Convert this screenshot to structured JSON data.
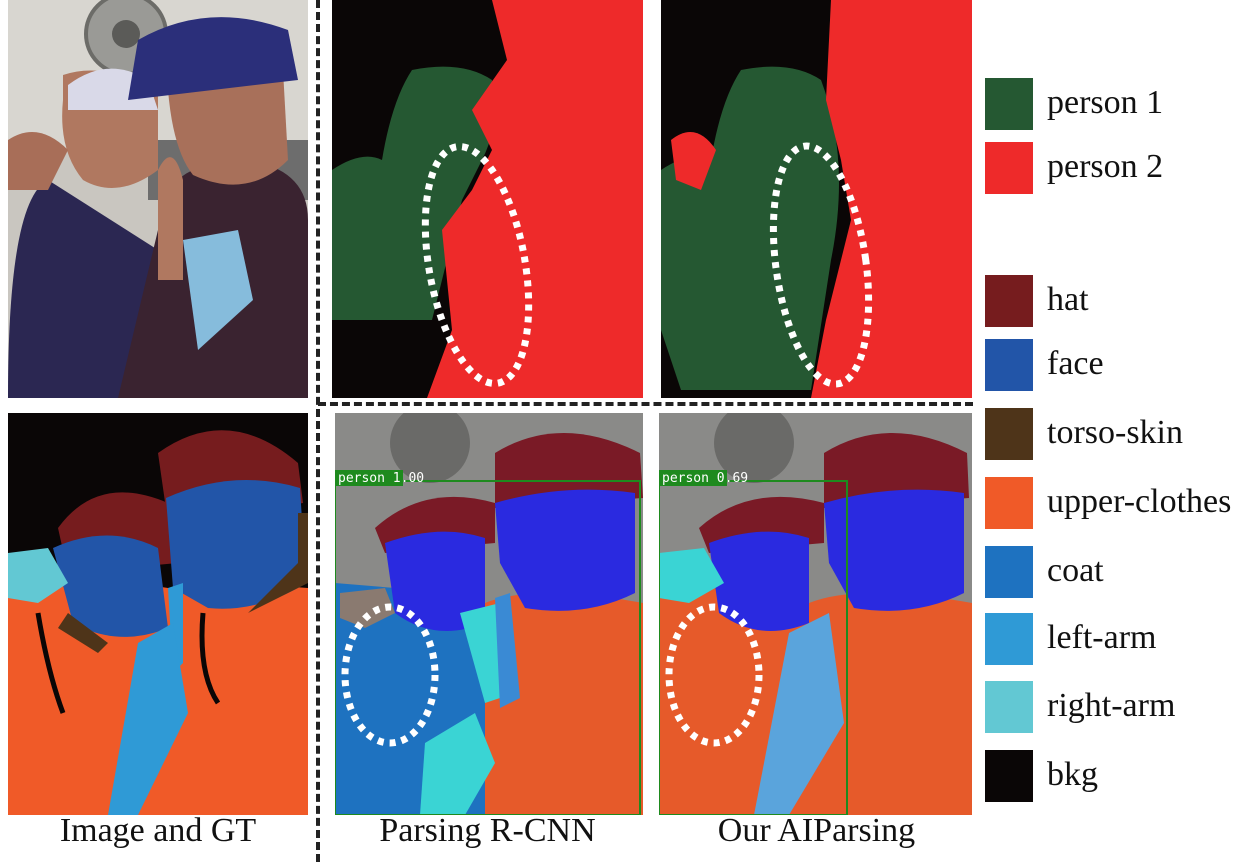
{
  "captions": {
    "col1": "Image and GT",
    "col2": "Parsing R-CNN",
    "col3": "Our AIParsing"
  },
  "detections": {
    "rcnn": "person 1.00",
    "aiparsing": "person 0.69"
  },
  "legend": {
    "instance": [
      {
        "label": "person 1",
        "color": "#255832"
      },
      {
        "label": "person 2",
        "color": "#ee2a2a"
      }
    ],
    "parts": [
      {
        "label": "hat",
        "color": "#761c1e"
      },
      {
        "label": "face",
        "color": "#2255a8"
      },
      {
        "label": "torso-skin",
        "color": "#4e3419"
      },
      {
        "label": "upper-clothes",
        "color": "#f05a28"
      },
      {
        "label": "coat",
        "color": "#1e72c0"
      },
      {
        "label": "left-arm",
        "color": "#2f9ad6"
      },
      {
        "label": "right-arm",
        "color": "#62c8d3"
      },
      {
        "label": "bkg",
        "color": "#0a0606"
      }
    ]
  }
}
